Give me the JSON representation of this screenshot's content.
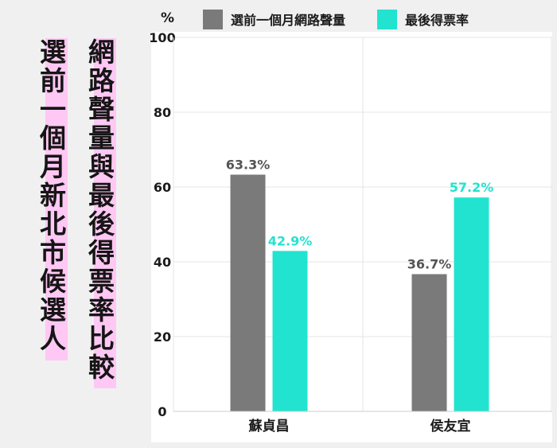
{
  "title": {
    "line1": [
      "選",
      "前",
      "一",
      "個",
      "月",
      "新",
      "北",
      "市",
      "候",
      "選",
      "人"
    ],
    "line2": [
      "網",
      "路",
      "聲",
      "量",
      "與",
      "最",
      "後",
      "得",
      "票",
      "率",
      "比",
      "較"
    ]
  },
  "unit": "%",
  "colors": {
    "background": "#f0f0f0",
    "highlight": "#ffc8f4",
    "series1": "#7a7a7a",
    "series2": "#22e3cf"
  },
  "chart_data": {
    "type": "bar",
    "categories": [
      "蘇貞昌",
      "侯友宜"
    ],
    "series": [
      {
        "name": "選前一個月網路聲量",
        "values": [
          63.3,
          36.7
        ],
        "labels": [
          "63.3%",
          "36.7%"
        ]
      },
      {
        "name": "最後得票率",
        "values": [
          42.9,
          57.2
        ],
        "labels": [
          "42.9%",
          "57.2%"
        ]
      }
    ],
    "ylabel": "%",
    "ylim": [
      0,
      100
    ],
    "yticks": [
      0,
      20,
      40,
      60,
      80,
      100
    ],
    "grid": true,
    "legend": "top"
  }
}
